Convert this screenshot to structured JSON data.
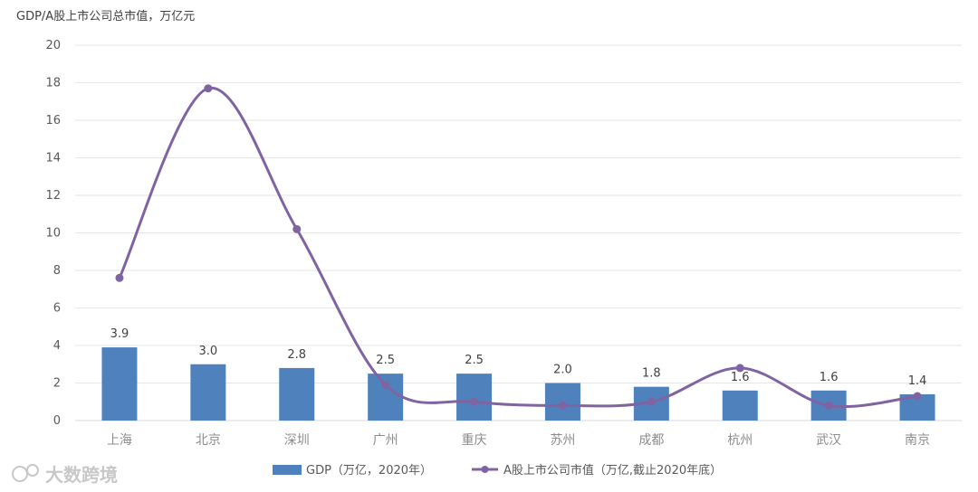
{
  "chart_data": {
    "type": "bar",
    "ylabel": "GDP/A股上市公司总市值，万亿元",
    "ylim": [
      0,
      20
    ],
    "yticks": [
      0,
      2,
      4,
      6,
      8,
      10,
      12,
      14,
      16,
      18,
      20
    ],
    "grid": true,
    "legend_position": "bottom",
    "categories": [
      "上海",
      "北京",
      "深圳",
      "广州",
      "重庆",
      "苏州",
      "成都",
      "杭州",
      "武汉",
      "南京"
    ],
    "series": [
      {
        "name": "GDP（万亿，2020年）",
        "type": "bar",
        "values": [
          3.9,
          3.0,
          2.8,
          2.5,
          2.5,
          2.0,
          1.8,
          1.6,
          1.6,
          1.4
        ],
        "labels": [
          "3.9",
          "3.0",
          "2.8",
          "2.5",
          "2.5",
          "2.0",
          "1.8",
          "1.6",
          "1.6",
          "1.4"
        ],
        "color": "#4f81bd"
      },
      {
        "name": "A股上市公司市值（万亿,截止2020年底）",
        "type": "line",
        "values": [
          7.6,
          17.7,
          10.2,
          1.9,
          1.0,
          0.8,
          1.0,
          2.8,
          0.8,
          1.3
        ],
        "color": "#8064a2"
      }
    ]
  },
  "watermark": "大数跨境"
}
